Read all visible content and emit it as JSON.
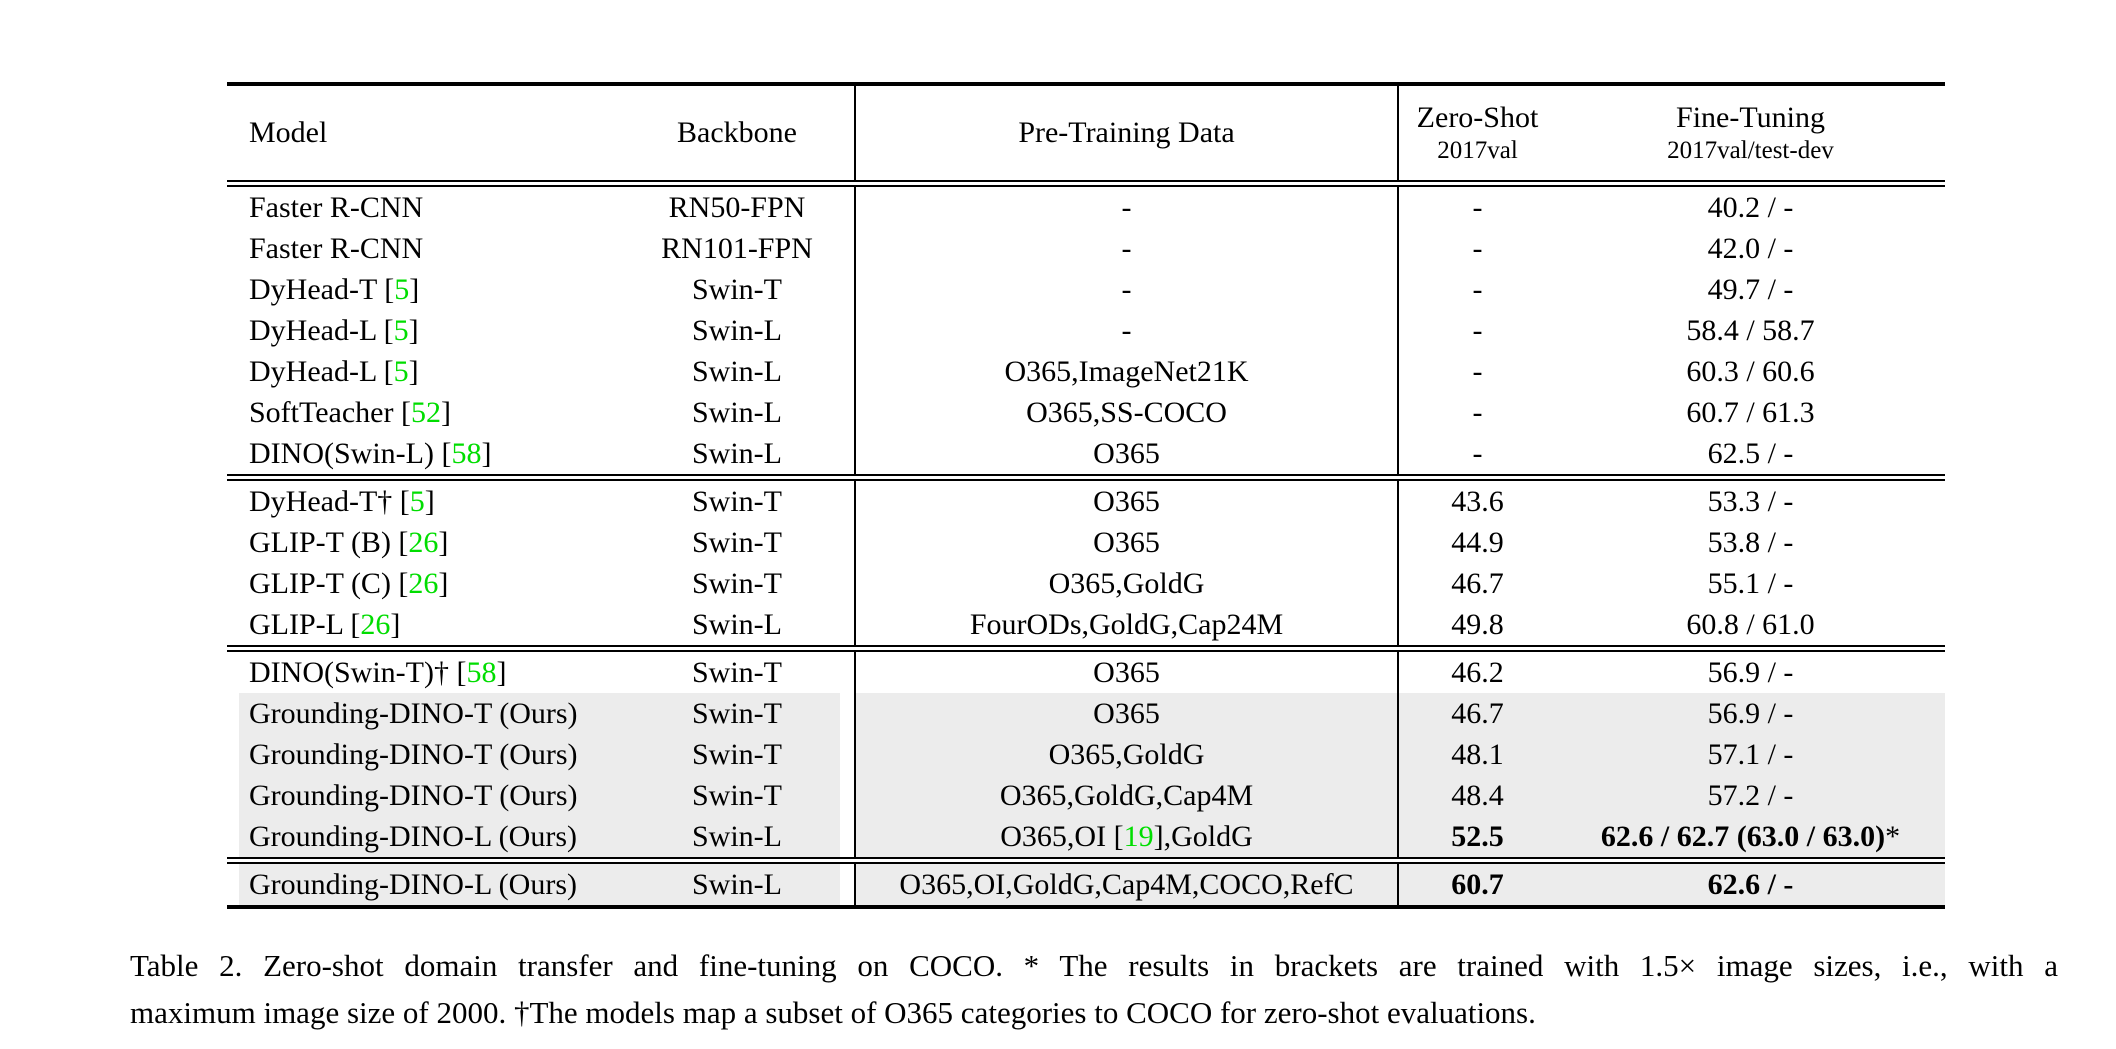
{
  "colors": {
    "highlight": "#ececec",
    "citation": "#00dd00",
    "rule": "#000000"
  },
  "table": {
    "headers": {
      "model": "Model",
      "backbone": "Backbone",
      "pretrain": "Pre-Training Data",
      "zero_shot_line1": "Zero-Shot",
      "zero_shot_line2": "2017val",
      "fine_tune_line1": "Fine-Tuning",
      "fine_tune_line2": "2017val/test-dev"
    },
    "groups": [
      {
        "rows": [
          {
            "model": "Faster R-CNN",
            "backbone": "RN50-FPN",
            "pretrain": "-",
            "zero_shot": "-",
            "fine_tune": "40.2 / -",
            "highlight": false,
            "bold": false
          },
          {
            "model": "Faster R-CNN",
            "backbone": "RN101-FPN",
            "pretrain": "-",
            "zero_shot": "-",
            "fine_tune": "42.0 / -",
            "highlight": false,
            "bold": false
          },
          {
            "model": "DyHead-T [5]",
            "backbone": "Swin-T",
            "pretrain": "-",
            "zero_shot": "-",
            "fine_tune": "49.7 / -",
            "highlight": false,
            "bold": false
          },
          {
            "model": "DyHead-L [5]",
            "backbone": "Swin-L",
            "pretrain": "-",
            "zero_shot": "-",
            "fine_tune": "58.4 / 58.7",
            "highlight": false,
            "bold": false
          },
          {
            "model": "DyHead-L [5]",
            "backbone": "Swin-L",
            "pretrain": "O365,ImageNet21K",
            "zero_shot": "-",
            "fine_tune": "60.3 / 60.6",
            "highlight": false,
            "bold": false
          },
          {
            "model": "SoftTeacher [52]",
            "backbone": "Swin-L",
            "pretrain": "O365,SS-COCO",
            "zero_shot": "-",
            "fine_tune": "60.7 / 61.3",
            "highlight": false,
            "bold": false
          },
          {
            "model": "DINO(Swin-L) [58]",
            "backbone": "Swin-L",
            "pretrain": "O365",
            "zero_shot": "-",
            "fine_tune": "62.5 / -",
            "highlight": false,
            "bold": false
          }
        ]
      },
      {
        "rows": [
          {
            "model": "DyHead-T† [5]",
            "backbone": "Swin-T",
            "pretrain": "O365",
            "zero_shot": "43.6",
            "fine_tune": "53.3 / -",
            "highlight": false,
            "bold": false
          },
          {
            "model": "GLIP-T (B) [26]",
            "backbone": "Swin-T",
            "pretrain": "O365",
            "zero_shot": "44.9",
            "fine_tune": "53.8 / -",
            "highlight": false,
            "bold": false
          },
          {
            "model": "GLIP-T (C) [26]",
            "backbone": "Swin-T",
            "pretrain": "O365,GoldG",
            "zero_shot": "46.7",
            "fine_tune": "55.1 / -",
            "highlight": false,
            "bold": false
          },
          {
            "model": "GLIP-L [26]",
            "backbone": "Swin-L",
            "pretrain": "FourODs,GoldG,Cap24M",
            "zero_shot": "49.8",
            "fine_tune": "60.8 / 61.0",
            "highlight": false,
            "bold": false
          }
        ]
      },
      {
        "rows": [
          {
            "model": "DINO(Swin-T)† [58]",
            "backbone": "Swin-T",
            "pretrain": "O365",
            "zero_shot": "46.2",
            "fine_tune": "56.9 / -",
            "highlight": false,
            "bold": false
          },
          {
            "model": "Grounding-DINO-T (Ours)",
            "backbone": "Swin-T",
            "pretrain": "O365",
            "zero_shot": "46.7",
            "fine_tune": "56.9 / -",
            "highlight": true,
            "bold": false
          },
          {
            "model": "Grounding-DINO-T (Ours)",
            "backbone": "Swin-T",
            "pretrain": "O365,GoldG",
            "zero_shot": "48.1",
            "fine_tune": "57.1 / -",
            "highlight": true,
            "bold": false
          },
          {
            "model": "Grounding-DINO-T (Ours)",
            "backbone": "Swin-T",
            "pretrain": "O365,GoldG,Cap4M",
            "zero_shot": "48.4",
            "fine_tune": "57.2 / -",
            "highlight": true,
            "bold": false
          },
          {
            "model": "Grounding-DINO-L (Ours)",
            "backbone": "Swin-L",
            "pretrain": "O365,OI [19],GoldG",
            "zero_shot": "52.5",
            "fine_tune": "62.6 / 62.7 (63.0 / 63.0)*",
            "highlight": true,
            "bold": true
          }
        ]
      },
      {
        "rows": [
          {
            "model": "Grounding-DINO-L (Ours)",
            "backbone": "Swin-L",
            "pretrain": "O365,OI,GoldG,Cap4M,COCO,RefC",
            "zero_shot": "60.7",
            "fine_tune": "62.6 / -",
            "highlight": true,
            "bold": true
          }
        ]
      }
    ]
  },
  "caption": {
    "line1": "Table 2.  Zero-shot domain transfer and fine-tuning on COCO. * The results in brackets are trained with 1.5× image sizes, i.e., with a",
    "line2": "maximum image size of 2000. †The models map a subset of O365 categories to COCO for zero-shot evaluations."
  }
}
